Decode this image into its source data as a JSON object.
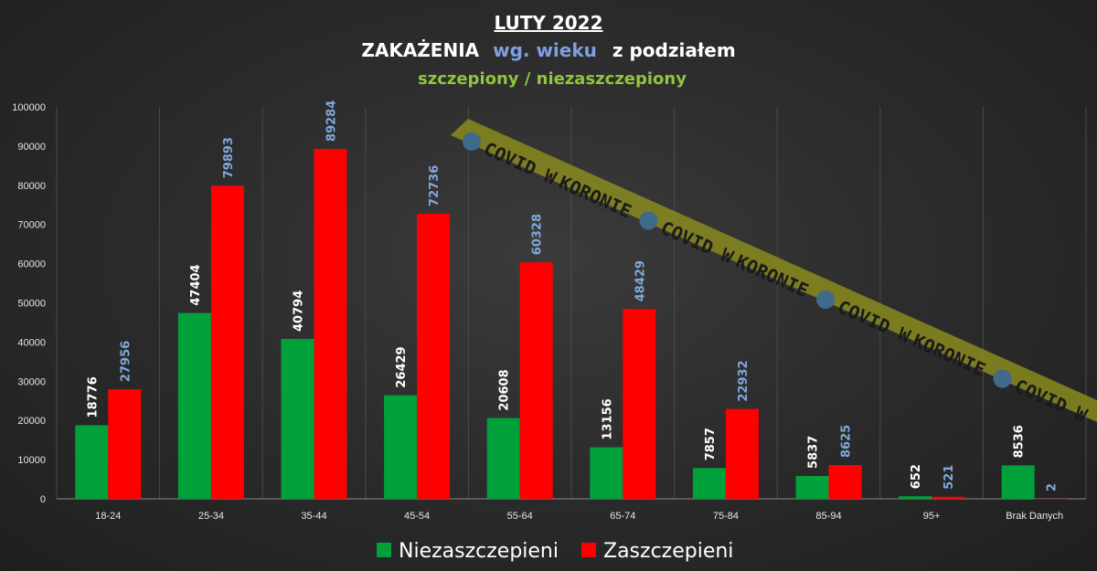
{
  "title": {
    "line1": "LUTY 2022",
    "line2_a": "ZAKAŻENIA",
    "line2_b": "wg. wieku",
    "line2_c": "z podziałem",
    "line3": "szczepiony / niezaszczepiony"
  },
  "watermark": {
    "text_a": "COVID W",
    "text_b": "KORONIE",
    "icon": "twitter-bird-icon"
  },
  "colors": {
    "unvaccinated": "#00a13a",
    "vaccinated": "#ff0000",
    "title_white": "#ffffff",
    "title_blue": "#7f9fe0",
    "title_green": "#8dc63f",
    "label_white": "#ffffff",
    "label_blue": "#7fa8dc"
  },
  "chart_data": {
    "type": "bar",
    "categories": [
      "18-24",
      "25-34",
      "35-44",
      "45-54",
      "55-64",
      "65-74",
      "75-84",
      "85-94",
      "95+",
      "Brak Danych"
    ],
    "series": [
      {
        "name": "Niezaszczepieni",
        "values": [
          18776,
          47404,
          40794,
          26429,
          20608,
          13156,
          7857,
          5837,
          652,
          8536
        ]
      },
      {
        "name": "Zaszczepieni",
        "values": [
          27956,
          79893,
          89284,
          72736,
          60328,
          48429,
          22932,
          8625,
          521,
          2
        ]
      }
    ],
    "ylim": [
      0,
      100000
    ],
    "yticks": [
      "0",
      "10000",
      "20000",
      "30000",
      "40000",
      "50000",
      "60000",
      "70000",
      "80000",
      "90000",
      "100000"
    ],
    "legend_position": "bottom",
    "grid": "vertical"
  }
}
